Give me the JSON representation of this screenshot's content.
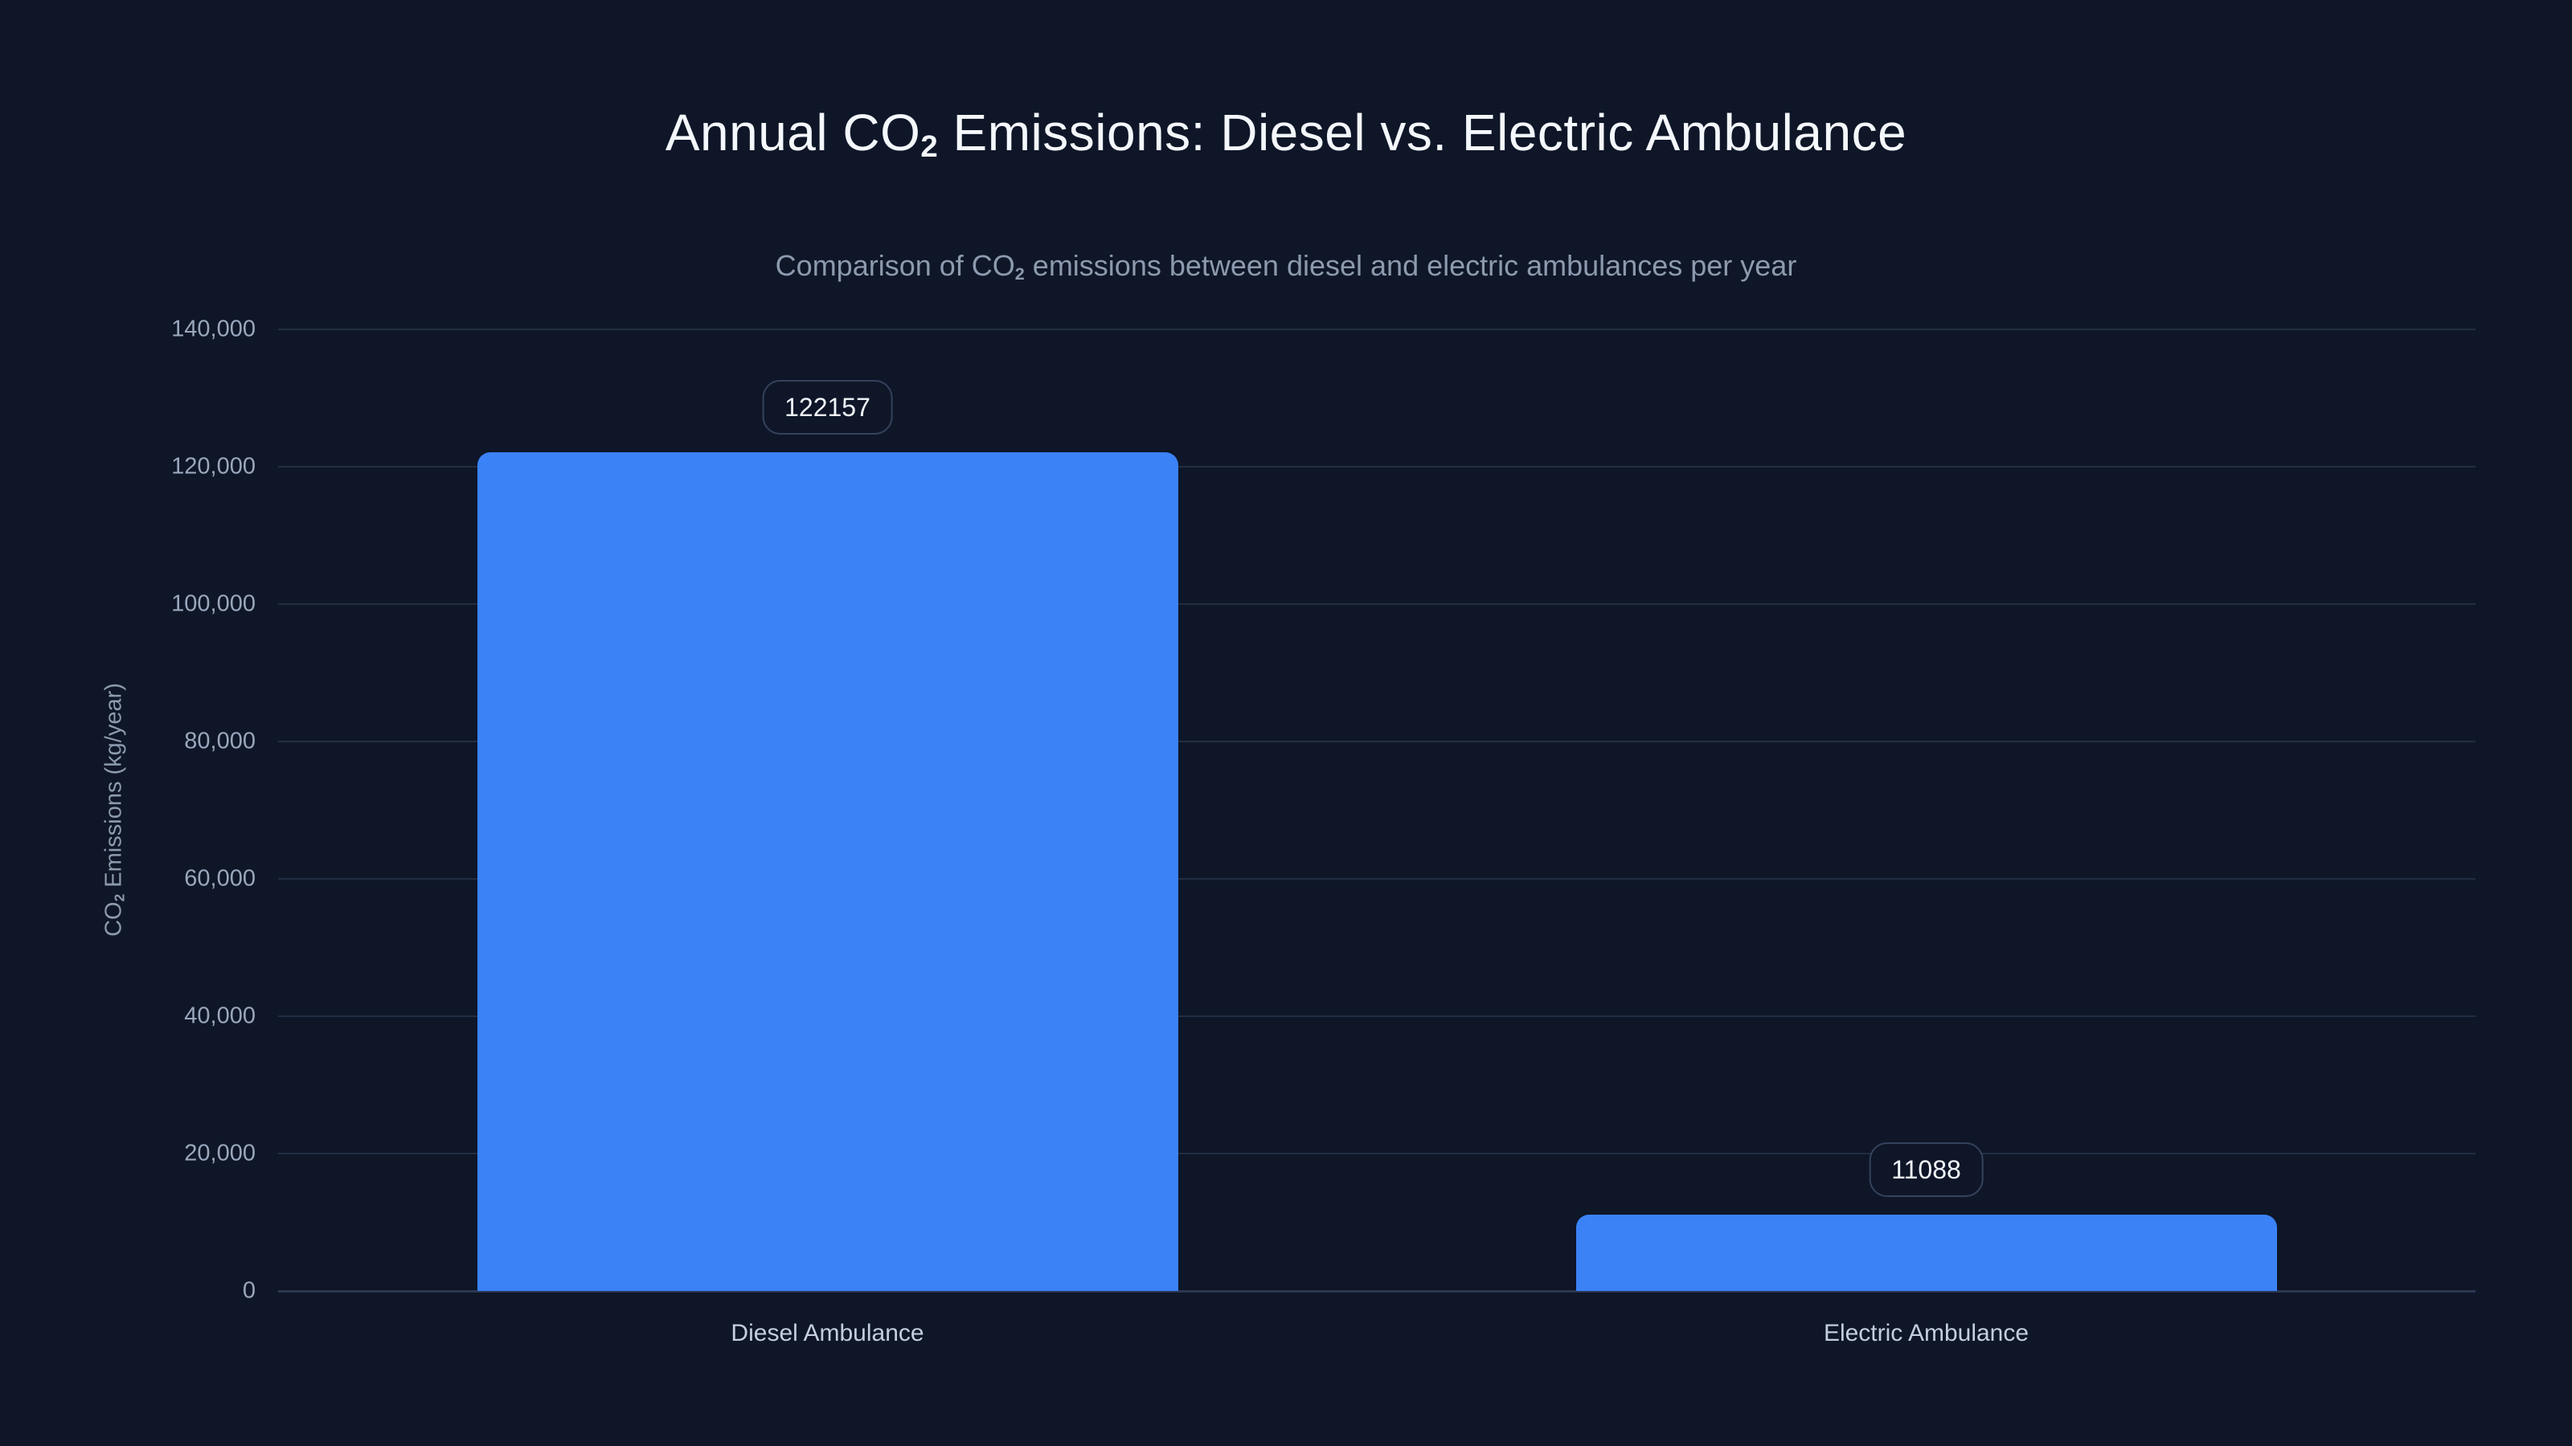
{
  "title": {
    "pre": "Annual CO",
    "sub": "2",
    "post": " Emissions: Diesel vs. Electric Ambulance"
  },
  "subtitle": {
    "pre": "Comparison of CO",
    "sub": "2",
    "post": " emissions between diesel and electric ambulances per year"
  },
  "chart_data": {
    "type": "bar",
    "categories": [
      "Diesel Ambulance",
      "Electric Ambulance"
    ],
    "values": [
      122157,
      11088
    ],
    "value_labels": [
      "122157",
      "11088"
    ],
    "series": [
      {
        "name": "Annual CO2 emissions",
        "values": [
          122157,
          11088
        ]
      }
    ],
    "title": "Annual CO2 Emissions: Diesel vs. Electric Ambulance",
    "subtitle": "Comparison of CO2 emissions between diesel and electric ambulances per year",
    "xlabel": "",
    "ylabel": {
      "pre": "CO",
      "sub": "2",
      "post": " Emissions (kg/year)"
    },
    "ylim": [
      0,
      140000
    ],
    "yticks": [
      0,
      20000,
      40000,
      60000,
      80000,
      100000,
      120000,
      140000
    ],
    "ytick_labels": [
      "0",
      "20,000",
      "40,000",
      "60,000",
      "80,000",
      "100,000",
      "120,000",
      "140,000"
    ],
    "grid": true,
    "legend": "none",
    "bar_color": "#3b82f6"
  },
  "colors": {
    "background": "#0e1628",
    "bar": "#3b82f6",
    "title_text": "#f4f7fb",
    "subtitle_text": "#8d9aae",
    "tick_text": "#9aa7bc",
    "category_text": "#c4cedd",
    "gridline": "#222d42",
    "axis_line": "#2b3752",
    "pill_border": "#35425c",
    "pill_text": "#f2f6fb"
  }
}
